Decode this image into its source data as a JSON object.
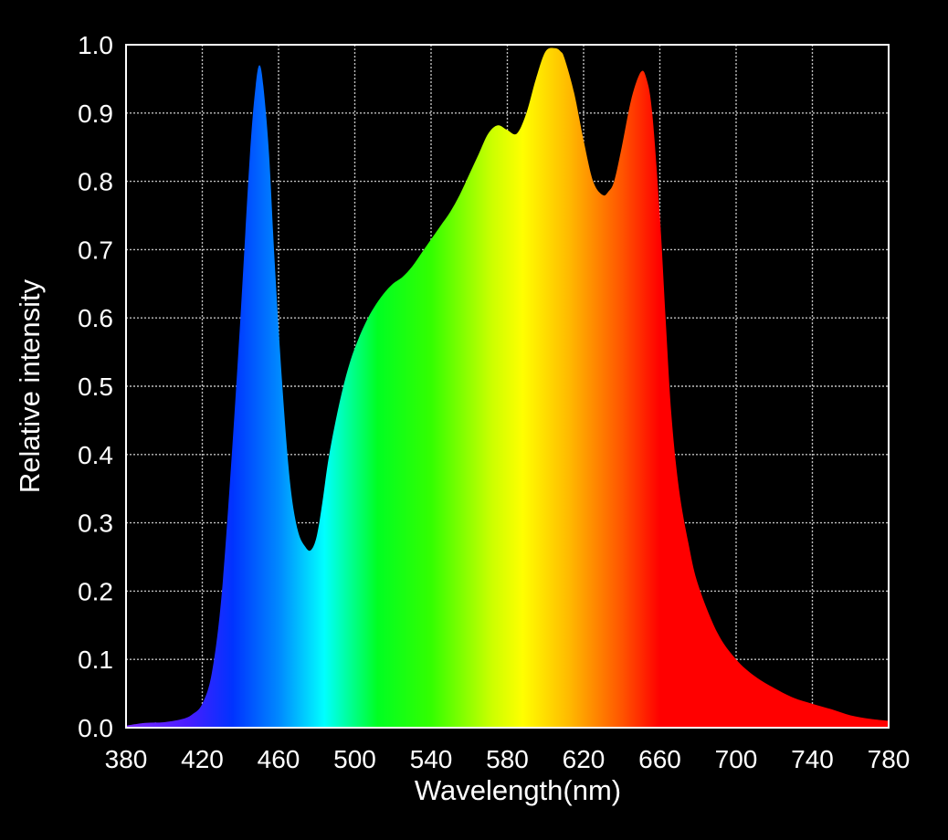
{
  "chart_data": {
    "type": "area",
    "title": "",
    "xlabel": "Wavelength(nm)",
    "ylabel": "Relative intensity",
    "xlim": [
      380,
      780
    ],
    "ylim": [
      0,
      1.0
    ],
    "grid": true,
    "x_ticks": [
      "380",
      "420",
      "460",
      "500",
      "540",
      "580",
      "620",
      "660",
      "700",
      "740",
      "780"
    ],
    "y_ticks": [
      "0.0",
      "0.1",
      "0.2",
      "0.3",
      "0.4",
      "0.5",
      "0.6",
      "0.7",
      "0.8",
      "0.9",
      "1.0"
    ],
    "fill": "spectral rainbow gradient",
    "background_color": "#000000",
    "frame_color": "#ffffff",
    "series": [
      {
        "x": [
          380,
          390,
          400,
          410,
          415,
          420,
          425,
          430,
          435,
          440,
          445,
          448,
          450,
          452,
          455,
          458,
          462,
          466,
          470,
          474,
          477,
          480,
          483,
          486,
          490,
          494,
          498,
          502,
          506,
          510,
          515,
          520,
          525,
          530,
          535,
          540,
          545,
          550,
          555,
          560,
          565,
          570,
          575,
          580,
          585,
          590,
          595,
          600,
          605,
          608,
          610,
          615,
          620,
          625,
          630,
          633,
          636,
          640,
          645,
          650,
          653,
          656,
          660,
          663,
          666,
          670,
          675,
          680,
          690,
          700,
          710,
          720,
          730,
          740,
          750,
          760,
          770,
          780
        ],
        "y": [
          0.003,
          0.007,
          0.008,
          0.013,
          0.02,
          0.035,
          0.08,
          0.19,
          0.38,
          0.6,
          0.84,
          0.94,
          0.97,
          0.94,
          0.84,
          0.68,
          0.5,
          0.36,
          0.29,
          0.265,
          0.26,
          0.28,
          0.33,
          0.39,
          0.45,
          0.5,
          0.54,
          0.57,
          0.595,
          0.615,
          0.635,
          0.65,
          0.66,
          0.675,
          0.695,
          0.715,
          0.735,
          0.755,
          0.78,
          0.81,
          0.84,
          0.87,
          0.882,
          0.875,
          0.87,
          0.9,
          0.95,
          0.99,
          0.995,
          0.99,
          0.98,
          0.93,
          0.86,
          0.8,
          0.78,
          0.785,
          0.8,
          0.85,
          0.92,
          0.96,
          0.95,
          0.9,
          0.75,
          0.6,
          0.46,
          0.35,
          0.27,
          0.21,
          0.14,
          0.1,
          0.075,
          0.058,
          0.044,
          0.035,
          0.027,
          0.018,
          0.013,
          0.01
        ]
      }
    ]
  }
}
